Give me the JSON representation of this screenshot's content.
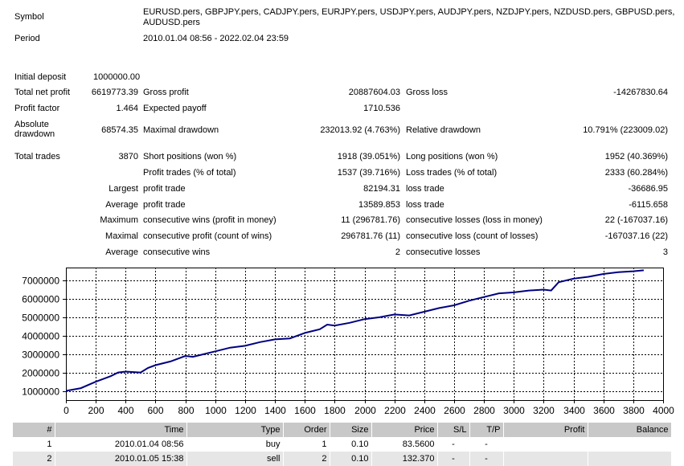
{
  "header": {
    "symbol_label": "Symbol",
    "symbol_value_line1": "EURUSD.pers, GBPJPY.pers, CADJPY.pers, EURJPY.pers, USDJPY.pers, AUDJPY.pers, NZDJPY.pers, NZDUSD.pers, GBPUSD.pers,",
    "symbol_value_line2": "AUDUSD.pers",
    "period_label": "Period",
    "period_value": "2010.01.04 08:56 - 2022.02.04 23:59"
  },
  "stats": {
    "initial_deposit_label": "Initial deposit",
    "initial_deposit": "1000000.00",
    "total_net_profit_label": "Total net profit",
    "total_net_profit": "6619773.39",
    "gross_profit_label": "Gross profit",
    "gross_profit": "20887604.03",
    "gross_loss_label": "Gross loss",
    "gross_loss": "-14267830.64",
    "profit_factor_label": "Profit factor",
    "profit_factor": "1.464",
    "expected_payoff_label": "Expected payoff",
    "expected_payoff": "1710.536",
    "absolute_drawdown_label_1": "Absolute",
    "absolute_drawdown_label_2": "drawdown",
    "absolute_drawdown": "68574.35",
    "maximal_drawdown_label": "Maximal drawdown",
    "maximal_drawdown": "232013.92 (4.763%)",
    "relative_drawdown_label": "Relative drawdown",
    "relative_drawdown": "10.791% (223009.02)",
    "total_trades_label": "Total trades",
    "total_trades": "3870",
    "short_positions_label": "Short positions (won %)",
    "short_positions": "1918 (39.051%)",
    "long_positions_label": "Long positions (won %)",
    "long_positions": "1952 (40.369%)",
    "profit_trades_label": "Profit trades (% of total)",
    "profit_trades": "1537 (39.716%)",
    "loss_trades_label": "Loss trades (% of total)",
    "loss_trades": "2333 (60.284%)",
    "largest_label": "Largest",
    "largest_profit_label": "profit trade",
    "largest_profit": "82194.31",
    "largest_loss_label": "loss trade",
    "largest_loss": "-36686.95",
    "average_label": "Average",
    "average_profit_label": "profit trade",
    "average_profit": "13589.853",
    "average_loss_label": "loss trade",
    "average_loss": "-6115.658",
    "maximum_label": "Maximum",
    "max_consec_wins_label": "consecutive wins (profit in money)",
    "max_consec_wins": "11 (296781.76)",
    "max_consec_losses_label": "consecutive losses (loss in money)",
    "max_consec_losses": "22 (-167037.16)",
    "maximal_label": "Maximal",
    "maximal_consec_profit_label": "consecutive profit (count of wins)",
    "maximal_consec_profit": "296781.76 (11)",
    "maximal_consec_loss_label": "consecutive loss (count of losses)",
    "maximal_consec_loss": "-167037.16 (22)",
    "average2_label": "Average",
    "avg_consec_wins_label": "consecutive wins",
    "avg_consec_wins": "2",
    "avg_consec_losses_label": "consecutive losses",
    "avg_consec_losses": "3"
  },
  "chart_data": {
    "type": "line",
    "xlim": [
      0,
      4000
    ],
    "ylim": [
      500000,
      7700000
    ],
    "x_ticks": [
      0,
      200,
      400,
      600,
      800,
      1000,
      1200,
      1400,
      1600,
      1800,
      2000,
      2200,
      2400,
      2600,
      2800,
      3000,
      3200,
      3400,
      3600,
      3800,
      4000
    ],
    "y_ticks": [
      1000000,
      2000000,
      3000000,
      4000000,
      5000000,
      6000000,
      7000000
    ],
    "grid": true,
    "line_color": "#000080",
    "series": [
      {
        "x": [
          0,
          100,
          200,
          300,
          350,
          400,
          500,
          550,
          600,
          700,
          800,
          850,
          900,
          1000,
          1100,
          1200,
          1300,
          1400,
          1500,
          1600,
          1700,
          1750,
          1800,
          1900,
          2000,
          2100,
          2200,
          2300,
          2400,
          2500,
          2600,
          2700,
          2800,
          2900,
          3000,
          3100,
          3200,
          3250,
          3300,
          3400,
          3500,
          3600,
          3700,
          3800,
          3870
        ],
        "y": [
          1000000,
          1150000,
          1500000,
          1800000,
          2000000,
          2050000,
          2000000,
          2250000,
          2400000,
          2600000,
          2900000,
          2850000,
          2950000,
          3150000,
          3350000,
          3450000,
          3650000,
          3800000,
          3850000,
          4150000,
          4350000,
          4600000,
          4550000,
          4700000,
          4900000,
          5000000,
          5150000,
          5100000,
          5300000,
          5500000,
          5650000,
          5900000,
          6100000,
          6300000,
          6350000,
          6450000,
          6500000,
          6450000,
          6900000,
          7100000,
          7200000,
          7350000,
          7450000,
          7500000,
          7550000
        ]
      }
    ]
  },
  "table": {
    "headers": [
      "#",
      "Time",
      "Type",
      "Order",
      "Size",
      "Price",
      "S/L",
      "T/P",
      "Profit",
      "Balance"
    ],
    "rows": [
      [
        "1",
        "2010.01.04 08:56",
        "buy",
        "1",
        "0.10",
        "83.5600",
        "-",
        "-",
        "",
        ""
      ],
      [
        "2",
        "2010.01.05 15:38",
        "sell",
        "2",
        "0.10",
        "132.370",
        "-",
        "-",
        "",
        ""
      ]
    ]
  }
}
